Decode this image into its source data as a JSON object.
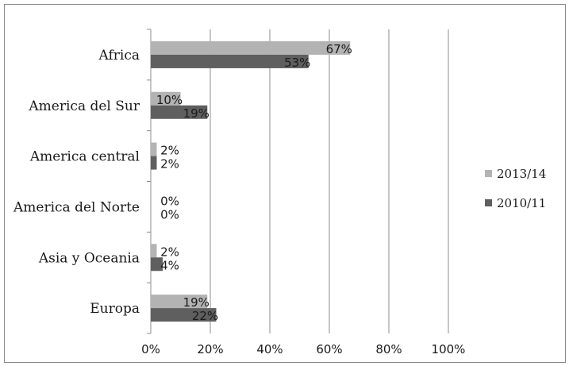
{
  "chart_data": {
    "type": "bar",
    "orientation": "horizontal",
    "categories": [
      "Africa",
      "America del Sur",
      "America central",
      "America del Norte",
      "Asia y Oceania",
      "Europa"
    ],
    "series": [
      {
        "name": "2013/14",
        "values": [
          67,
          10,
          2,
          0,
          2,
          19
        ],
        "labels": [
          "67%",
          "10%",
          "2%",
          "0%",
          "2%",
          "19%"
        ],
        "color": "#b3b3b3"
      },
      {
        "name": "2010/11",
        "values": [
          53,
          19,
          2,
          0,
          4,
          22
        ],
        "labels": [
          "53%",
          "19%",
          "2%",
          "0%",
          "4%",
          "22%"
        ],
        "color": "#5f5f5f"
      }
    ],
    "xlim": [
      0,
      100
    ],
    "xticks": [
      0,
      20,
      40,
      60,
      80,
      100
    ],
    "xtick_labels": [
      "0%",
      "20%",
      "40%",
      "60%",
      "80%",
      "100%"
    ],
    "grid": "vertical",
    "legend_position": "right",
    "title": "",
    "xlabel": "",
    "ylabel": ""
  }
}
